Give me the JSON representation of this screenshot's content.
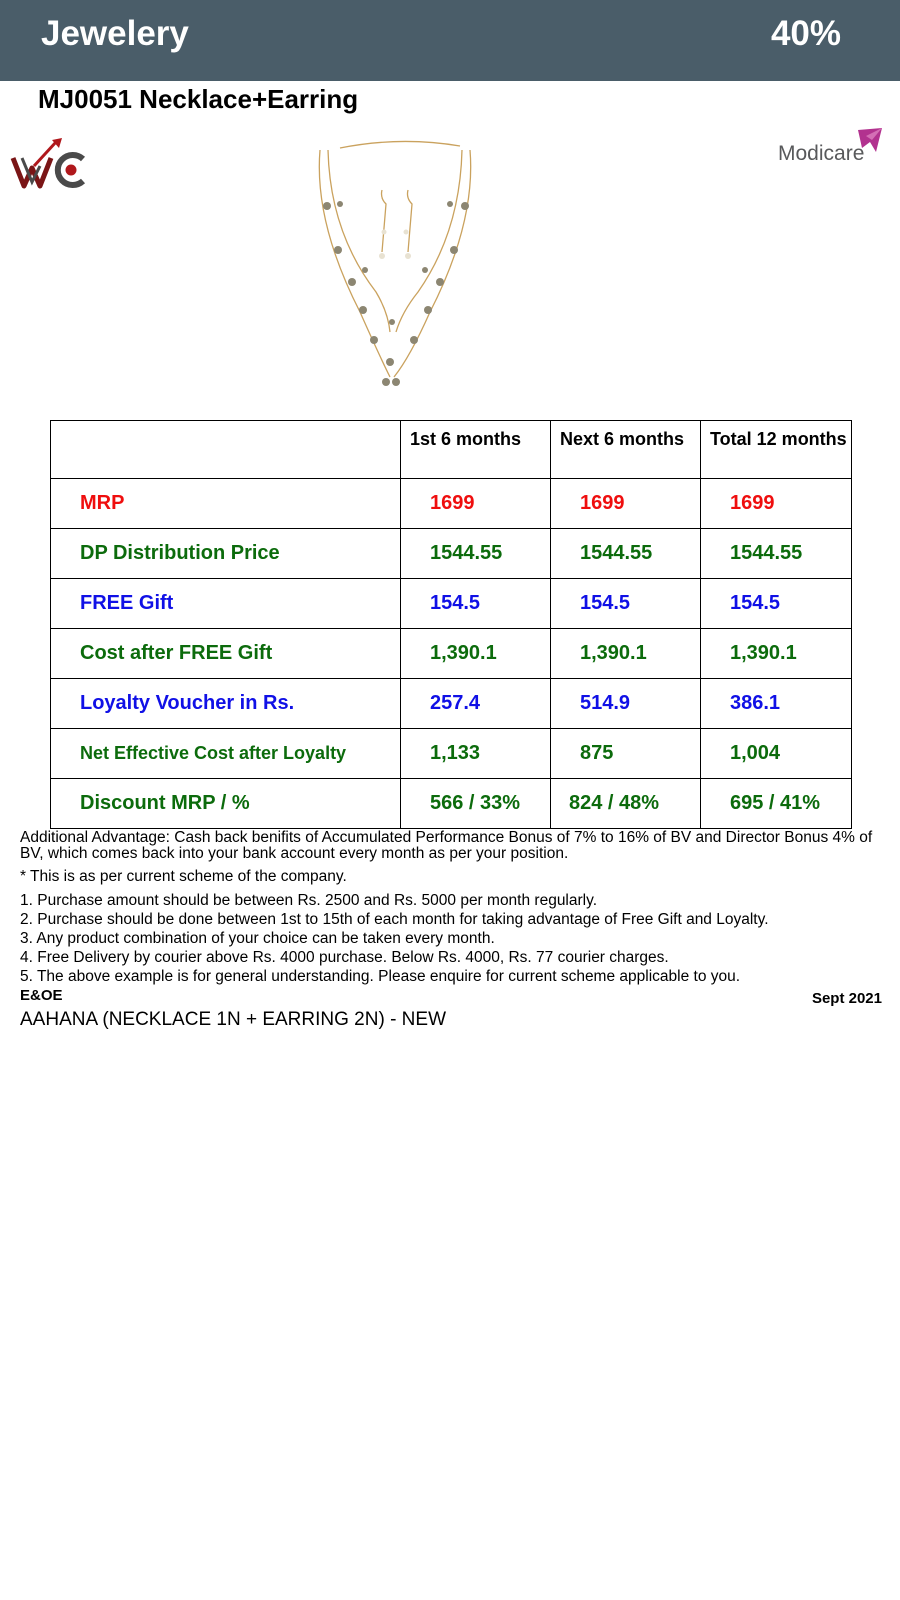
{
  "header": {
    "category": "Jewelery",
    "percent": "40%"
  },
  "product": {
    "title": "MJ0051 Necklace+Earring"
  },
  "logos": {
    "left": "WC",
    "right": "Modicare"
  },
  "table": {
    "columns": [
      "",
      "1st 6 months",
      "Next 6 months",
      "Total 12 months"
    ],
    "rows": [
      {
        "label": "MRP",
        "values": [
          "1699",
          "1699",
          "1699"
        ],
        "color": "#ef0e0e"
      },
      {
        "label": "DP Distribution Price",
        "values": [
          "1544.55",
          "1544.55",
          "1544.55"
        ],
        "color": "#0c6b0c"
      },
      {
        "label": "FREE Gift",
        "values": [
          "154.5",
          "154.5",
          "154.5"
        ],
        "color": "#1010e6"
      },
      {
        "label": "Cost after FREE Gift",
        "values": [
          "1,390.1",
          "1,390.1",
          "1,390.1"
        ],
        "color": "#0c6b0c"
      },
      {
        "label": "Loyalty Voucher in Rs.",
        "values": [
          "257.4",
          "514.9",
          "386.1"
        ],
        "color": "#1010e6"
      },
      {
        "label": "Net Effective Cost after Loyalty",
        "values": [
          "1,133",
          "875",
          "1,004"
        ],
        "color": "#0c6b0c"
      },
      {
        "label": "Discount MRP / %",
        "values": [
          "566 / 33%",
          "824 / 48%",
          "695 / 41%"
        ],
        "color": "#0c6b0c"
      }
    ]
  },
  "notes": {
    "advantage": "Additional Advantage: Cash back benifits of Accumulated Performance Bonus of 7% to 16% of BV and Director Bonus 4% of BV, which comes back into your bank account every month as per your position.",
    "scheme": "* This is as per current scheme of the company.",
    "items": [
      "1. Purchase amount should be between Rs. 2500 and Rs. 5000 per month regularly.",
      "2. Purchase should be done between 1st to 15th of each month for taking advantage of Free Gift and Loyalty.",
      "3. Any product combination of your choice can be taken every month.",
      "4. Free Delivery by courier above Rs. 4000 purchase. Below Rs. 4000, Rs. 77 courier charges.",
      "5. The above example is for general understanding. Please enquire for current scheme applicable to you."
    ]
  },
  "footer": {
    "eoe": "E&OE",
    "date": "Sept 2021",
    "product_name": "AAHANA (NECKLACE 1N + EARRING 2N) - NEW"
  }
}
